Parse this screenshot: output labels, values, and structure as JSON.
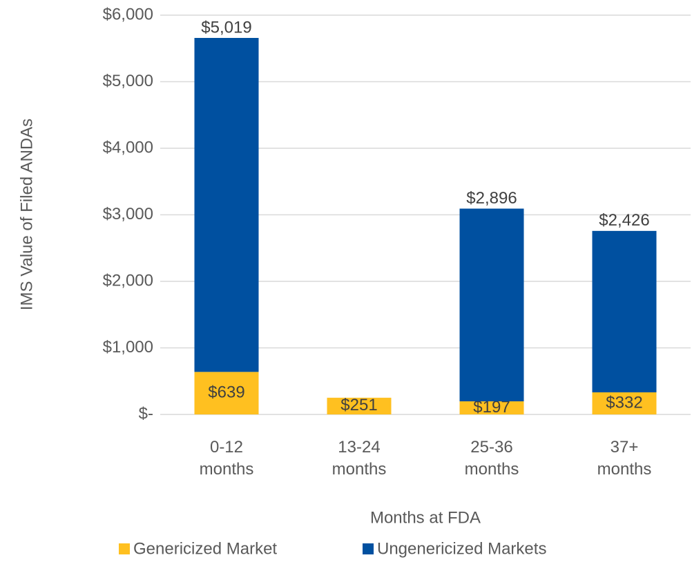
{
  "chart_data": {
    "type": "stacked_bar",
    "categories": [
      "0-12 months",
      "13-24 months",
      "25-36 months",
      "37+ months"
    ],
    "series": [
      {
        "name": "Genericized Market",
        "color": "#ffc020",
        "values": [
          639,
          251,
          197,
          332
        ],
        "value_labels": [
          "$639",
          "$251",
          "$197",
          "$332"
        ]
      },
      {
        "name": "Ungenericized Markets",
        "color": "#0050a0",
        "values": [
          5019,
          null,
          2896,
          2426
        ],
        "value_labels": [
          "$5,019",
          null,
          "$2,896",
          "$2,426"
        ]
      }
    ],
    "ylim": [
      0,
      6000
    ],
    "yticks": [
      {
        "value": 0,
        "label": "$-"
      },
      {
        "value": 1000,
        "label": "$1,000"
      },
      {
        "value": 2000,
        "label": "$2,000"
      },
      {
        "value": 3000,
        "label": "$3,000"
      },
      {
        "value": 4000,
        "label": "$4,000"
      },
      {
        "value": 5000,
        "label": "$5,000"
      },
      {
        "value": 6000,
        "label": "$6,000"
      }
    ],
    "y_label": "IMS Value of Filed ANDAs",
    "x_label": "Months at FDA",
    "grid": true
  }
}
